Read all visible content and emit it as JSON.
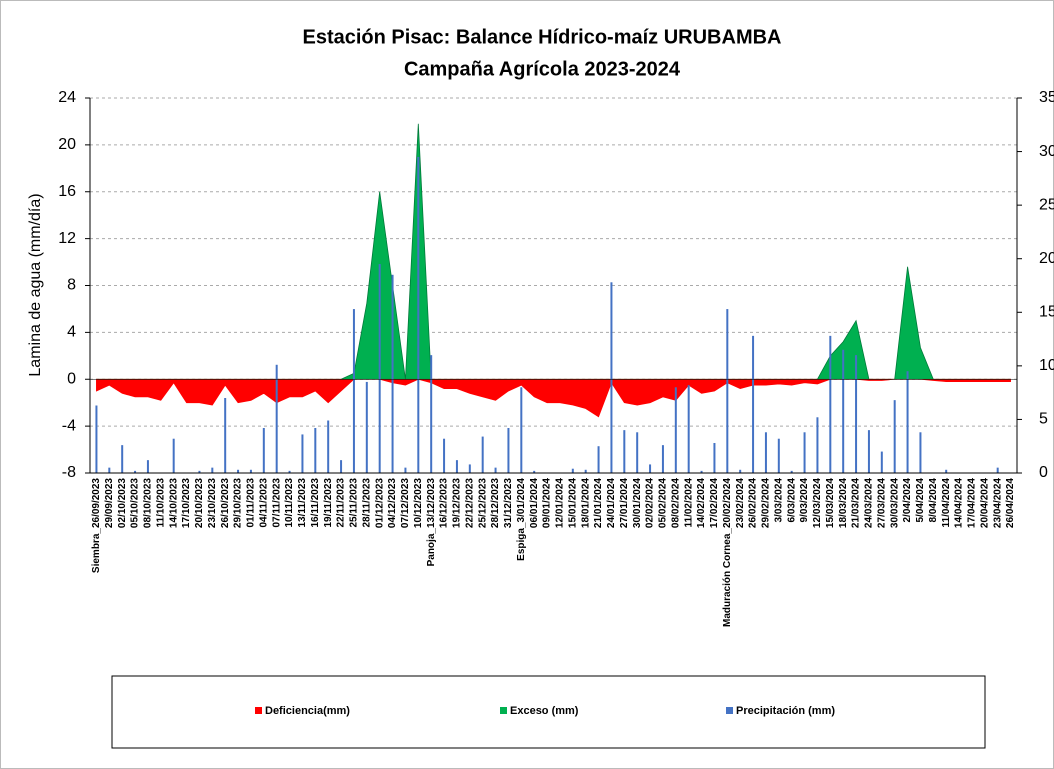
{
  "chart_data": {
    "type": "combo",
    "title": [
      "Estación Pisac: Balance Hídrico-maíz URUBAMBA",
      "Campaña Agrícola 2023-2024"
    ],
    "y_label": "Lamina de agua (mm/día)",
    "categories": [
      "Siembra_26/09/2023",
      "29/09/2023",
      "02/10/2023",
      "05/10/2023",
      "08/10/2023",
      "11/10/2023",
      "14/10/2023",
      "17/10/2023",
      "20/10/2023",
      "23/10/2023",
      "26/10/2023",
      "29/10/2023",
      "01/11/2023",
      "04/11/2023",
      "07/11/2023",
      "10/11/2023",
      "13/11/2023",
      "16/11/2023",
      "19/11/2023",
      "22/11/2023",
      "25/11/2023",
      "28/11/2023",
      "01/12/2023",
      "04/12/2023",
      "07/12/2023",
      "10/12/2023",
      "Panoja_13/12/2023",
      "16/12/2023",
      "19/12/2023",
      "22/12/2023",
      "25/12/2023",
      "28/12/2023",
      "31/12/2023",
      "Espiga_3/01/2024",
      "06/01/2024",
      "09/01/2024",
      "12/01/2024",
      "15/01/2024",
      "18/01/2024",
      "21/01/2024",
      "24/01/2024",
      "27/01/2024",
      "30/01/2024",
      "02/02/2024",
      "05/02/2024",
      "08/02/2024",
      "11/02/2024",
      "14/02/2024",
      "17/02/2024",
      "Maduración Cornea_20/02/2024",
      "23/02/2024",
      "26/02/2024",
      "29/02/2024",
      "3/03/2024",
      "6/03/2024",
      "9/03/2024",
      "12/03/2024",
      "15/03/2024",
      "18/03/2024",
      "21/03/2024",
      "24/03/2024",
      "27/03/2024",
      "30/03/2024",
      "2/04/2024",
      "5/04/2024",
      "8/04/2024",
      "11/04/2024",
      "14/04/2024",
      "17/04/2024",
      "20/04/2024",
      "23/04/2024",
      "26/04/2024"
    ],
    "series": [
      {
        "name": "Deficiencia(mm)",
        "type": "area",
        "color": "#ff0000",
        "values": [
          -1,
          -0.5,
          -1.2,
          -1.5,
          -1.5,
          -1.8,
          -0.3,
          -2,
          -2,
          -2.2,
          -0.5,
          -2,
          -1.8,
          -1.2,
          -2,
          -1.5,
          -1.5,
          -1,
          -2,
          -1,
          0,
          0,
          0,
          -0.3,
          -0.5,
          0,
          -0.3,
          -0.8,
          -0.8,
          -1.2,
          -1.5,
          -1.8,
          -1,
          -0.5,
          -1.5,
          -2,
          -2,
          -2.2,
          -2.5,
          -3.2,
          -0.3,
          -2,
          -2.2,
          -2,
          -1.5,
          -1.8,
          -0.5,
          -1.2,
          -1,
          -0.3,
          -0.8,
          -0.5,
          -0.5,
          -0.4,
          -0.5,
          -0.3,
          -0.4,
          0,
          0,
          0,
          -0.1,
          -0.1,
          0,
          0,
          0,
          -0.1,
          -0.2,
          -0.2,
          -0.2,
          -0.2,
          -0.2,
          -0.2
        ]
      },
      {
        "name": "Exceso (mm)",
        "type": "area",
        "color": "#00b050",
        "values": [
          0,
          0,
          0,
          0,
          0,
          0,
          0,
          0,
          0,
          0,
          0,
          0,
          0,
          0,
          0,
          0,
          0,
          0,
          0,
          0,
          0.5,
          6.5,
          16,
          8,
          0,
          21.8,
          0,
          0,
          0,
          0,
          0,
          0,
          0,
          0,
          0,
          0,
          0,
          0,
          0,
          0,
          0,
          0,
          0,
          0,
          0,
          0,
          0,
          0,
          0,
          0,
          0,
          0,
          0,
          0,
          0,
          0,
          0,
          2,
          3.2,
          5,
          0,
          0,
          0,
          9.6,
          2.7,
          0,
          0,
          0,
          0,
          0,
          0,
          0
        ]
      },
      {
        "name": "Precipitación (mm)",
        "type": "bar",
        "axis": "y2",
        "color": "#4472c4",
        "values": [
          6.3,
          0.5,
          2.6,
          0.2,
          1.2,
          0,
          3.2,
          0,
          0.2,
          0.5,
          7,
          0.3,
          0.3,
          4.2,
          10.1,
          0.2,
          3.6,
          4.2,
          4.9,
          1.2,
          15.3,
          8.5,
          19.5,
          18.5,
          0.5,
          29.5,
          11,
          3.2,
          1.2,
          0.8,
          3.4,
          0.5,
          4.2,
          8,
          0.2,
          0,
          0,
          0.4,
          0.3,
          2.5,
          17.8,
          4,
          3.8,
          0.8,
          2.6,
          8,
          8.2,
          0.2,
          2.8,
          15.3,
          0.3,
          12.8,
          3.8,
          3.2,
          0.2,
          3.8,
          5.2,
          12.8,
          11.5,
          11,
          4,
          2,
          6.8,
          9.5,
          3.8,
          0,
          0.3,
          0,
          0,
          0,
          0.5,
          0
        ]
      }
    ],
    "ylim": [
      -8,
      24
    ],
    "yticks": [
      -8,
      -4,
      0,
      4,
      8,
      12,
      16,
      20,
      24
    ],
    "y2lim": [
      0,
      35
    ],
    "y2ticks": [
      0,
      5,
      10,
      15,
      20,
      25,
      30,
      35
    ],
    "grid": true
  }
}
